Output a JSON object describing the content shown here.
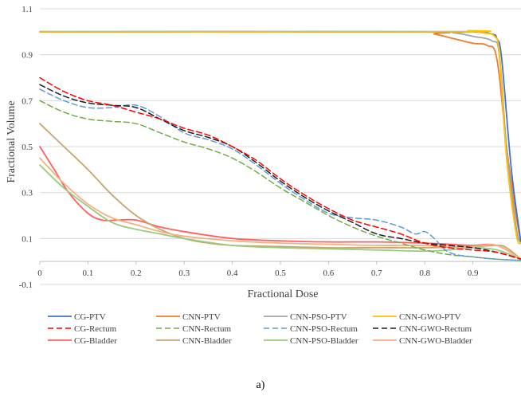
{
  "chart_data": {
    "type": "line",
    "xlabel": "Fractional Dose",
    "ylabel": "Fractional Volume",
    "xlim": [
      0,
      1
    ],
    "ylim": [
      -0.1,
      1.1
    ],
    "x_ticks": [
      "0",
      "0.1",
      "0.2",
      "0.3",
      "0.4",
      "0.5",
      "0.6",
      "0.7",
      "0.8",
      "0.9"
    ],
    "x_tick_values": [
      0,
      0.1,
      0.2,
      0.3,
      0.4,
      0.5,
      0.6,
      0.7,
      0.8,
      0.9
    ],
    "y_ticks": [
      "-0.1",
      "0.1",
      "0.3",
      "0.5",
      "0.7",
      "0.9",
      "1.1"
    ],
    "y_tick_values": [
      -0.1,
      0.1,
      0.3,
      0.5,
      0.7,
      0.9,
      1.1
    ],
    "grid": "horizontal",
    "legend_position": "bottom",
    "caption": "a)",
    "series": [
      {
        "name": "CG-PTV",
        "color": "#4472c4",
        "dash": "solid",
        "x": [
          0,
          0.8,
          0.9,
          0.94,
          0.95,
          0.96,
          0.98,
          1.0
        ],
        "y": [
          1.0,
          1.0,
          1.0,
          0.99,
          0.97,
          0.88,
          0.4,
          0.08
        ]
      },
      {
        "name": "CNN-PTV",
        "color": "#ed7d31",
        "dash": "solid",
        "x": [
          0,
          0.78,
          0.82,
          0.86,
          0.9,
          0.93,
          0.95,
          0.97,
          0.99,
          1.0
        ],
        "y": [
          1.0,
          1.0,
          0.99,
          0.97,
          0.95,
          0.94,
          0.88,
          0.5,
          0.2,
          0.08
        ]
      },
      {
        "name": "CNN-PSO-PTV",
        "color": "#a5a5a5",
        "dash": "solid",
        "x": [
          0,
          0.8,
          0.86,
          0.9,
          0.94,
          0.955,
          0.97,
          0.99,
          1.0
        ],
        "y": [
          1.0,
          1.0,
          0.995,
          0.98,
          0.96,
          0.9,
          0.5,
          0.15,
          0.08
        ]
      },
      {
        "name": "CNN-GWO-PTV",
        "color": "#ffc000",
        "dash": "solid",
        "x": [
          0,
          0.86,
          0.89,
          0.92,
          0.945,
          0.955,
          0.97,
          0.99,
          1.0
        ],
        "y": [
          1.0,
          1.0,
          1.005,
          0.995,
          0.98,
          0.9,
          0.45,
          0.12,
          0.08
        ]
      },
      {
        "name": "CG-Rectum",
        "color": "#ff0000",
        "dash": "dashed",
        "x": [
          0,
          0.05,
          0.1,
          0.15,
          0.2,
          0.25,
          0.3,
          0.35,
          0.4,
          0.45,
          0.5,
          0.55,
          0.6,
          0.65,
          0.7,
          0.75,
          0.8,
          0.85,
          0.9,
          0.95,
          1.0
        ],
        "y": [
          0.8,
          0.74,
          0.7,
          0.68,
          0.65,
          0.62,
          0.58,
          0.55,
          0.5,
          0.44,
          0.36,
          0.29,
          0.23,
          0.18,
          0.15,
          0.12,
          0.08,
          0.06,
          0.05,
          0.04,
          0.01
        ]
      },
      {
        "name": "CNN-Rectum",
        "color": "#70ad47",
        "dash": "dashed",
        "x": [
          0,
          0.05,
          0.1,
          0.15,
          0.2,
          0.25,
          0.3,
          0.35,
          0.4,
          0.45,
          0.5,
          0.55,
          0.6,
          0.65,
          0.7,
          0.75,
          0.8,
          0.85,
          0.9,
          0.95,
          1.0
        ],
        "y": [
          0.7,
          0.65,
          0.62,
          0.61,
          0.6,
          0.56,
          0.52,
          0.49,
          0.45,
          0.39,
          0.32,
          0.26,
          0.2,
          0.15,
          0.11,
          0.08,
          0.05,
          0.03,
          0.02,
          0.01,
          0.005
        ]
      },
      {
        "name": "CNN-PSO-Rectum",
        "color": "#5b9bd5",
        "dash": "dashed",
        "x": [
          0,
          0.05,
          0.1,
          0.15,
          0.2,
          0.25,
          0.3,
          0.35,
          0.4,
          0.45,
          0.5,
          0.55,
          0.6,
          0.65,
          0.7,
          0.75,
          0.78,
          0.8,
          0.82,
          0.85,
          0.9,
          0.95,
          1.0
        ],
        "y": [
          0.75,
          0.7,
          0.67,
          0.67,
          0.68,
          0.63,
          0.56,
          0.53,
          0.49,
          0.42,
          0.34,
          0.27,
          0.21,
          0.19,
          0.18,
          0.15,
          0.12,
          0.13,
          0.1,
          0.04,
          0.02,
          0.01,
          0.005
        ]
      },
      {
        "name": "CNN-GWO-Rectum",
        "color": "#1f1f1f",
        "dash": "dashed",
        "x": [
          0,
          0.05,
          0.1,
          0.15,
          0.2,
          0.25,
          0.3,
          0.35,
          0.4,
          0.45,
          0.5,
          0.55,
          0.6,
          0.65,
          0.7,
          0.75,
          0.8,
          0.85,
          0.9,
          0.95,
          1.0
        ],
        "y": [
          0.77,
          0.72,
          0.69,
          0.68,
          0.67,
          0.62,
          0.57,
          0.54,
          0.5,
          0.43,
          0.35,
          0.28,
          0.22,
          0.17,
          0.12,
          0.1,
          0.08,
          0.07,
          0.06,
          0.04,
          0.01
        ]
      },
      {
        "name": "CG-Bladder",
        "color": "#ff5f5f",
        "dash": "solid",
        "x": [
          0,
          0.03,
          0.06,
          0.1,
          0.13,
          0.16,
          0.2,
          0.25,
          0.3,
          0.4,
          0.5,
          0.6,
          0.7,
          0.8,
          0.85,
          0.9,
          0.95,
          1.0
        ],
        "y": [
          0.5,
          0.4,
          0.3,
          0.21,
          0.18,
          0.18,
          0.18,
          0.15,
          0.13,
          0.1,
          0.09,
          0.085,
          0.085,
          0.08,
          0.075,
          0.07,
          0.07,
          0.01
        ]
      },
      {
        "name": "CNN-Bladder",
        "color": "#c8a46e",
        "dash": "solid",
        "x": [
          0,
          0.05,
          0.1,
          0.15,
          0.2,
          0.25,
          0.3,
          0.35,
          0.4,
          0.5,
          0.6,
          0.7,
          0.8,
          0.9,
          0.95,
          0.97,
          1.0
        ],
        "y": [
          0.6,
          0.5,
          0.4,
          0.29,
          0.2,
          0.14,
          0.1,
          0.08,
          0.07,
          0.065,
          0.06,
          0.06,
          0.06,
          0.065,
          0.07,
          0.06,
          0.01
        ]
      },
      {
        "name": "CNN-PSO-Bladder",
        "color": "#9acb7c",
        "dash": "solid",
        "x": [
          0,
          0.05,
          0.1,
          0.15,
          0.2,
          0.25,
          0.3,
          0.4,
          0.5,
          0.6,
          0.7,
          0.8,
          0.85,
          0.9,
          0.95,
          1.0
        ],
        "y": [
          0.42,
          0.32,
          0.24,
          0.17,
          0.14,
          0.12,
          0.1,
          0.07,
          0.06,
          0.055,
          0.05,
          0.045,
          0.05,
          0.06,
          0.05,
          0.01
        ]
      },
      {
        "name": "CNN-GWO-Bladder",
        "color": "#f4b183",
        "dash": "solid",
        "x": [
          0,
          0.05,
          0.1,
          0.15,
          0.2,
          0.25,
          0.3,
          0.4,
          0.5,
          0.6,
          0.7,
          0.8,
          0.85,
          0.9,
          0.95,
          1.0
        ],
        "y": [
          0.45,
          0.34,
          0.25,
          0.19,
          0.16,
          0.13,
          0.11,
          0.09,
          0.08,
          0.075,
          0.07,
          0.07,
          0.065,
          0.065,
          0.07,
          0.01
        ]
      }
    ]
  }
}
